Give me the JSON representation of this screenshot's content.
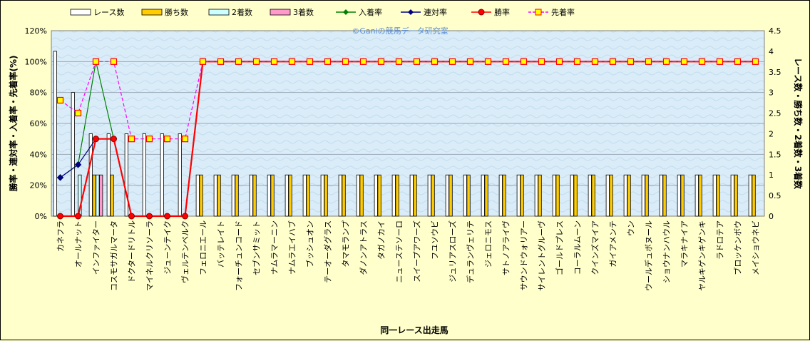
{
  "watermark": "©Ganiの競馬データ研究室",
  "chart_data": {
    "type": "bar+line",
    "xlabel": "同一レース出走馬",
    "ylabel_left": "勝率・連対率・入着率・先着率(%)",
    "ylabel_right": "レース数・勝ち数・2着数・3着数",
    "ylim_left": [
      0,
      120
    ],
    "ylim_right": [
      0,
      4.5
    ],
    "yticks_left": [
      "0%",
      "20%",
      "40%",
      "60%",
      "80%",
      "100%",
      "120%"
    ],
    "yticks_right": [
      "0",
      "0.5",
      "1",
      "1.5",
      "2",
      "2.5",
      "3",
      "3.5",
      "4",
      "4.5"
    ],
    "grid": true,
    "legend_position": "top",
    "categories": [
      "カネフラ",
      "オールナット",
      "インファイター",
      "コスモサガルマータ",
      "ドクタードリトル",
      "マイネルクリソーラ",
      "ジューンテイク",
      "ヴェルテンベルク",
      "フェロニエール",
      "バッテレイト",
      "フォーチュンコード",
      "セブンサミット",
      "ナムラマーニン",
      "ナムラエイハブ",
      "ブッシュオン",
      "テーオーダグラス",
      "タマモランプ",
      "ダノンアトラス",
      "タガノカイ",
      "ニューステソーロ",
      "スイープアワーズ",
      "フユソウビ",
      "ジュリアスローズ",
      "デュランヴェリテ",
      "ジェロニモス",
      "サトノアライヴ",
      "サウンドウォリアー",
      "サイレントグルーヴ",
      "ゴールドプレス",
      "コーラルムーン",
      "クインズマイア",
      "ガイアメンテ",
      "ウン",
      "ウールデュボヌール",
      "ショウナンハウル",
      "マラキナイア",
      "ヤルキゲンキゲンキ",
      "ラドロテア",
      "ブロッケンボウ",
      "メイショウネビ"
    ],
    "bar_series": [
      {
        "name": "レース数",
        "color": "#ffffff",
        "values": [
          4,
          3,
          2,
          2,
          2,
          2,
          2,
          2,
          1,
          1,
          1,
          1,
          1,
          1,
          1,
          1,
          1,
          1,
          1,
          1,
          1,
          1,
          1,
          1,
          1,
          1,
          1,
          1,
          1,
          1,
          1,
          1,
          1,
          1,
          1,
          1,
          1,
          1,
          1,
          1
        ]
      },
      {
        "name": "勝ち数",
        "color": "#ffcc00",
        "values": [
          0,
          0,
          1,
          1,
          0,
          0,
          0,
          0,
          1,
          1,
          1,
          1,
          1,
          1,
          1,
          1,
          1,
          1,
          1,
          1,
          1,
          1,
          1,
          1,
          1,
          1,
          1,
          1,
          1,
          1,
          1,
          1,
          1,
          1,
          1,
          1,
          1,
          1,
          1,
          1
        ]
      },
      {
        "name": "2着数",
        "color": "#ccffff",
        "values": [
          0,
          1,
          1,
          0,
          0,
          0,
          0,
          0,
          0,
          0,
          0,
          0,
          0,
          0,
          0,
          0,
          0,
          0,
          0,
          0,
          0,
          0,
          0,
          0,
          0,
          0,
          0,
          0,
          0,
          0,
          0,
          0,
          0,
          0,
          0,
          0,
          0,
          0,
          0,
          0
        ]
      },
      {
        "name": "3着数",
        "color": "#ff99cc",
        "values": [
          0,
          0,
          1,
          0,
          0,
          0,
          0,
          0,
          0,
          0,
          0,
          0,
          0,
          0,
          0,
          0,
          0,
          0,
          0,
          0,
          0,
          0,
          0,
          0,
          0,
          0,
          0,
          0,
          0,
          0,
          0,
          0,
          0,
          0,
          0,
          0,
          0,
          0,
          0,
          0
        ]
      }
    ],
    "line_series": [
      {
        "name": "入着率",
        "color": "#008000",
        "marker": "diamond",
        "values": [
          25,
          33.3,
          100,
          50,
          null,
          null,
          null,
          null,
          null,
          null,
          null,
          null,
          null,
          null,
          null,
          null,
          null,
          null,
          null,
          null,
          null,
          null,
          null,
          null,
          null,
          null,
          null,
          null,
          null,
          null,
          null,
          null,
          null,
          null,
          null,
          null,
          null,
          null,
          null,
          null
        ]
      },
      {
        "name": "連対率",
        "color": "#000080",
        "marker": "diamond",
        "values": [
          25,
          33.3,
          50,
          null,
          null,
          null,
          null,
          null,
          null,
          null,
          null,
          null,
          null,
          null,
          null,
          null,
          null,
          null,
          null,
          null,
          null,
          null,
          null,
          null,
          null,
          null,
          null,
          null,
          null,
          null,
          null,
          null,
          null,
          null,
          null,
          null,
          null,
          null,
          null,
          null
        ]
      },
      {
        "name": "勝率",
        "color": "#ff0000",
        "marker": "circle",
        "values": [
          0,
          0,
          50,
          50,
          0,
          0,
          0,
          0,
          100,
          100,
          100,
          100,
          100,
          100,
          100,
          100,
          100,
          100,
          100,
          100,
          100,
          100,
          100,
          100,
          100,
          100,
          100,
          100,
          100,
          100,
          100,
          100,
          100,
          100,
          100,
          100,
          100,
          100,
          100,
          100
        ]
      },
      {
        "name": "先着率",
        "color": "#ff00ff",
        "marker": "square",
        "values": [
          75,
          66.7,
          100,
          100,
          50,
          50,
          50,
          50,
          100,
          100,
          100,
          100,
          100,
          100,
          100,
          100,
          100,
          100,
          100,
          100,
          100,
          100,
          100,
          100,
          100,
          100,
          100,
          100,
          100,
          100,
          100,
          100,
          100,
          100,
          100,
          100,
          100,
          100,
          100,
          100
        ]
      }
    ]
  }
}
